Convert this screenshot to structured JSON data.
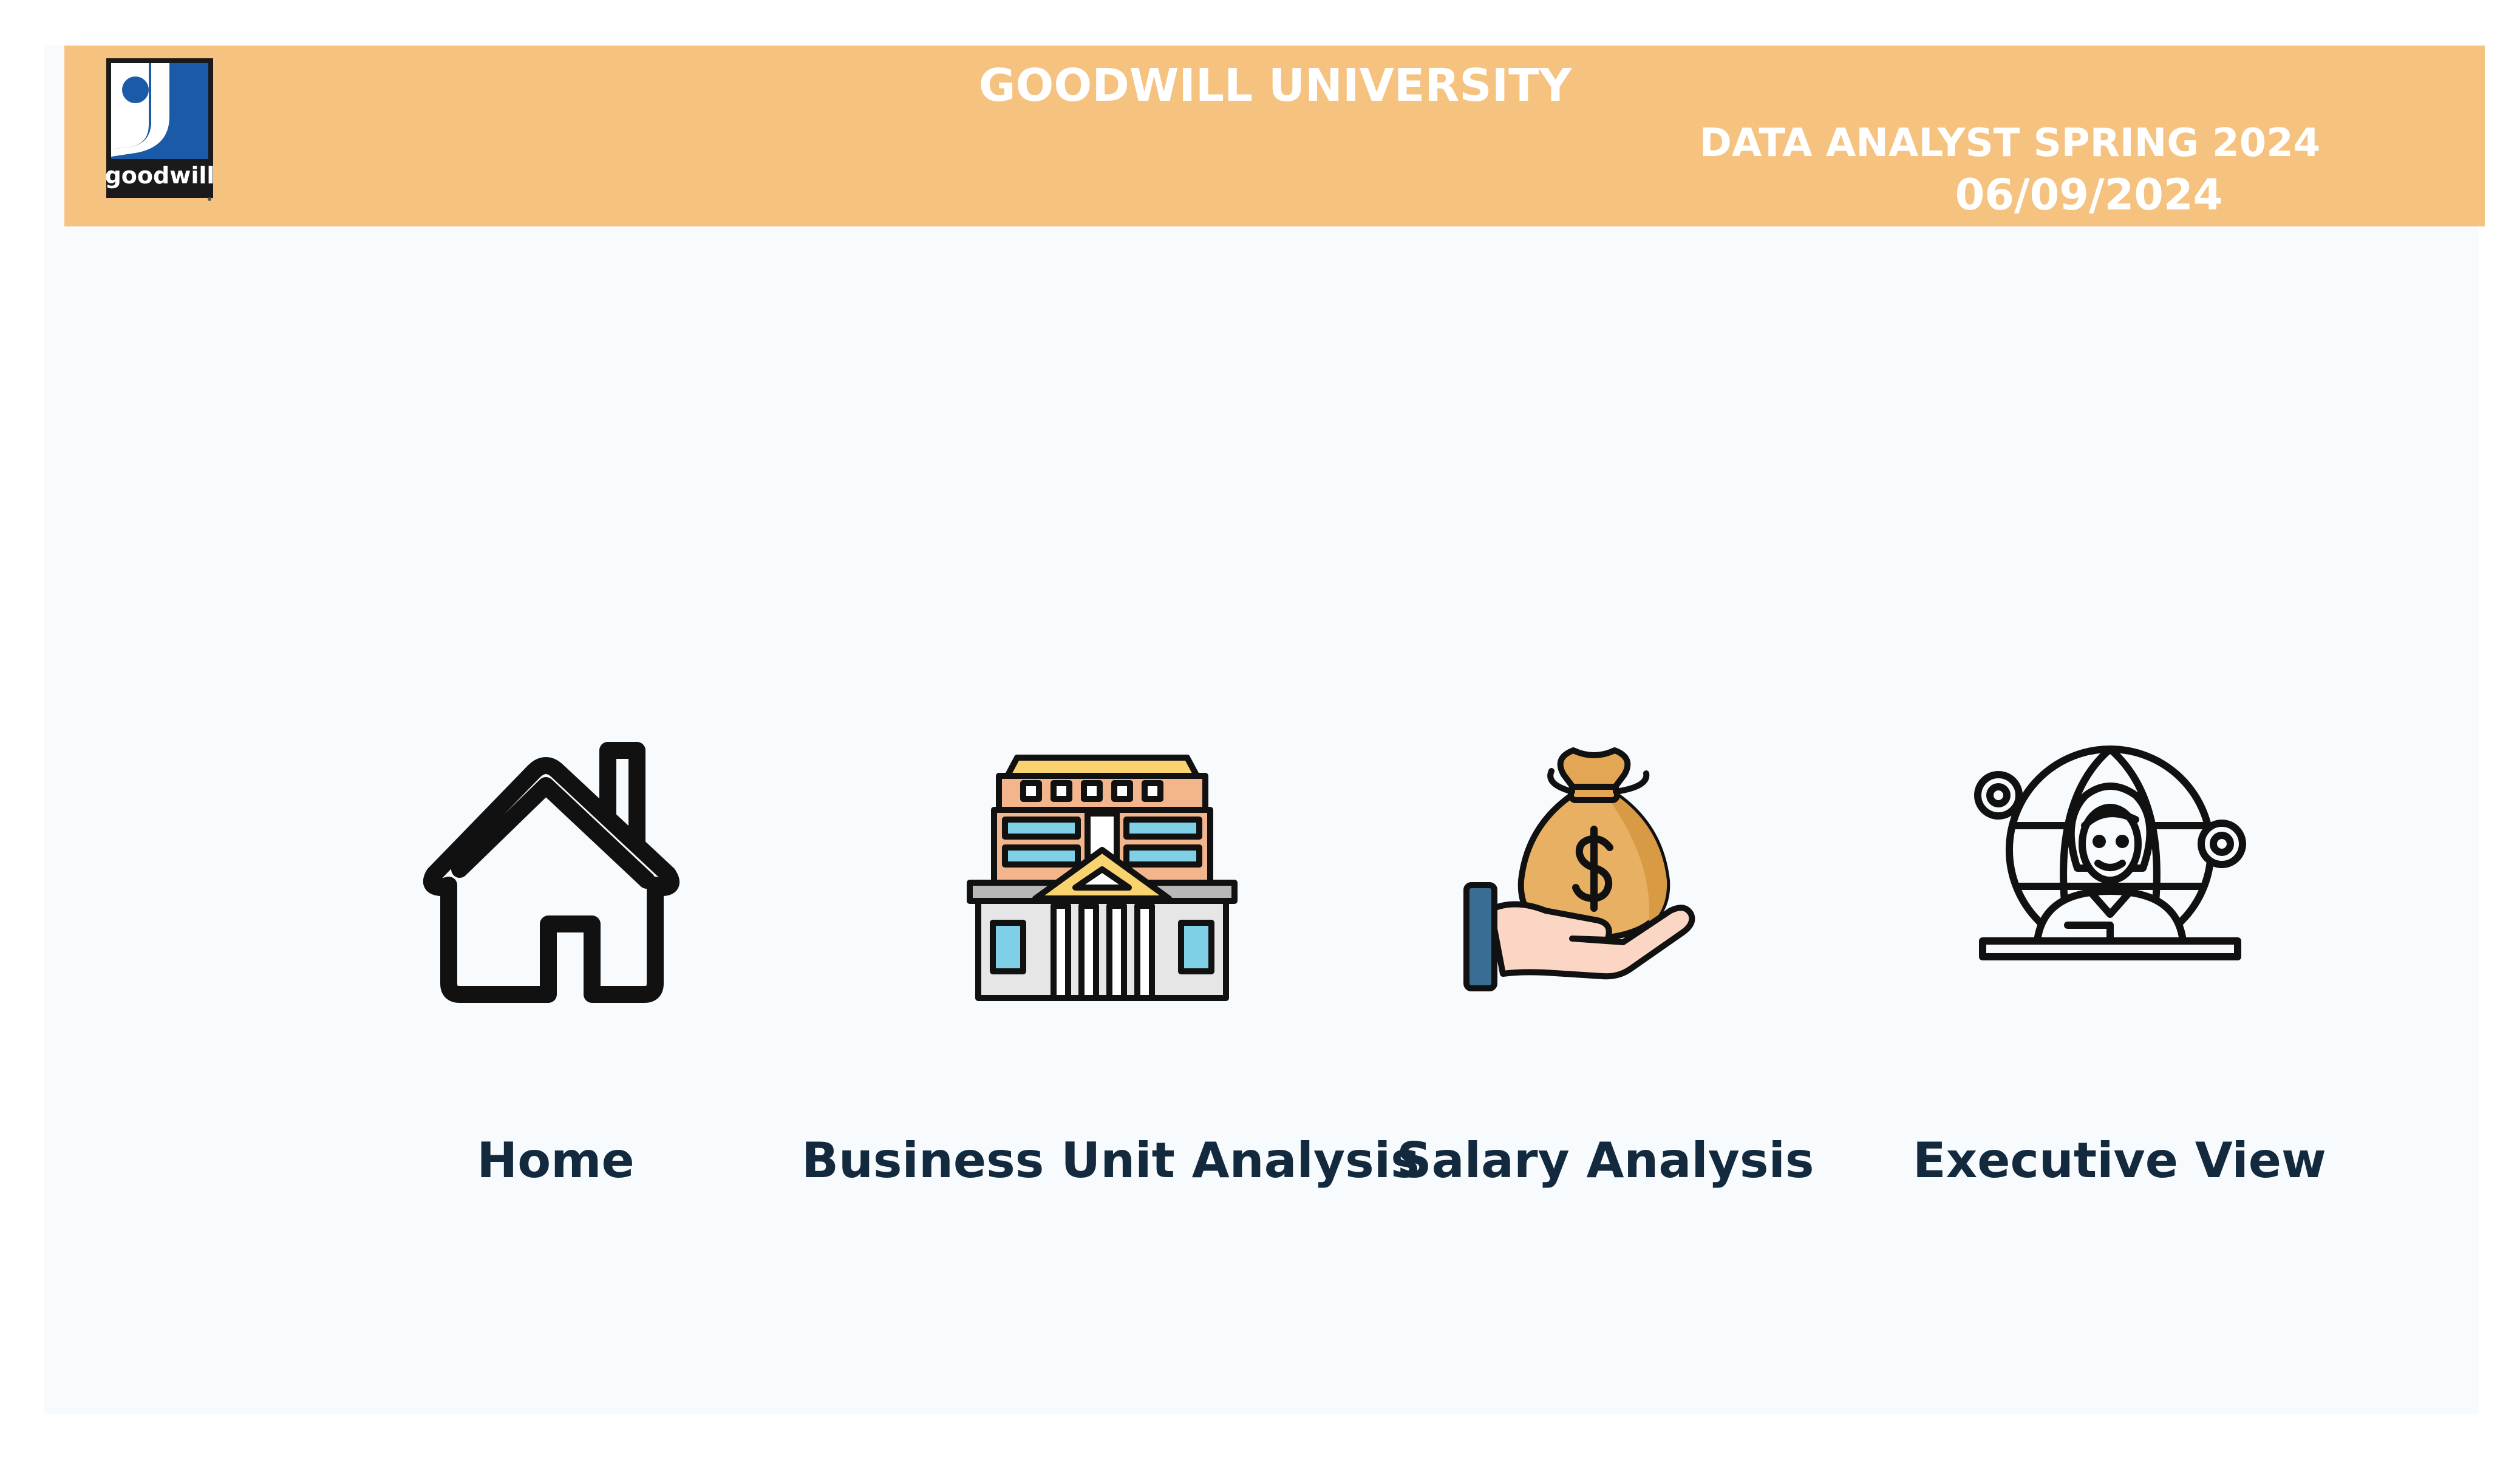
{
  "header": {
    "brand": "goodwill",
    "title": "GOODWILL UNIVERSITY",
    "subtitle": "DATA ANALYST SPRING 2024",
    "date": "06/09/2024"
  },
  "colors": {
    "header_bg": "#f5c27f",
    "canvas_bg": "#f8fbfd",
    "label_text": "#13293d",
    "logo_blue": "#1b5aa6"
  },
  "nav": {
    "items": [
      {
        "label": "Home",
        "icon": "house-icon"
      },
      {
        "label": "Business Unit Analysis",
        "icon": "building-icon"
      },
      {
        "label": "Salary Analysis",
        "icon": "money-bag-icon"
      },
      {
        "label": "Executive View",
        "icon": "executive-globe-icon"
      }
    ]
  }
}
